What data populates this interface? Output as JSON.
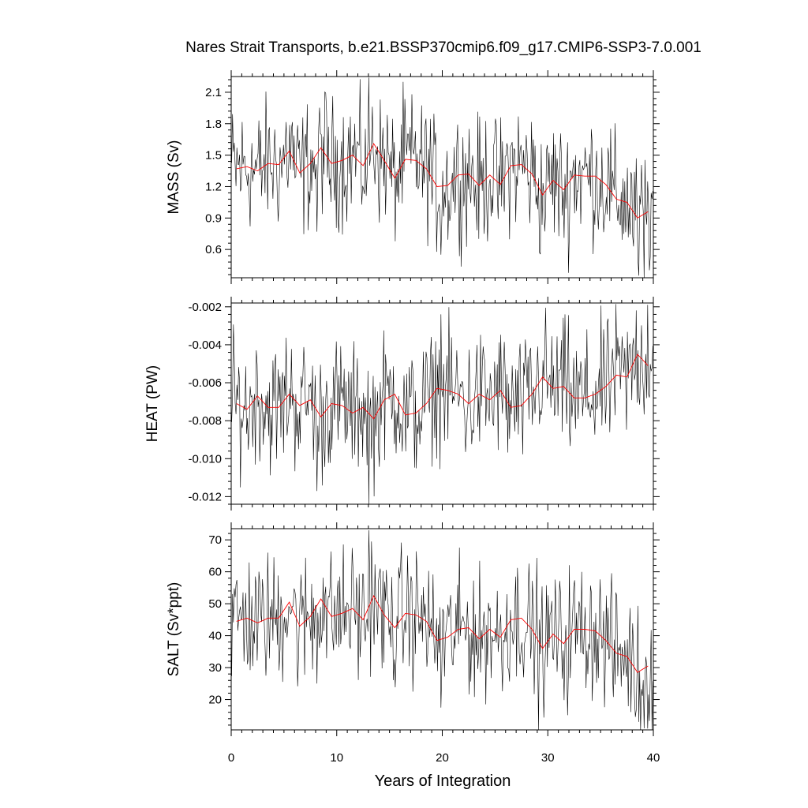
{
  "chart_data": {
    "title": "Nares Strait Transports, b.e21.BSSP370cmip6.f09_g17.CMIP6-SSP3-7.0.001",
    "xlabel": "Years of Integration",
    "xlim": [
      0,
      40
    ],
    "xticks": [
      "0",
      "10",
      "20",
      "30",
      "40"
    ],
    "line_colors": {
      "monthly": "#000000",
      "annual": "#ff0000"
    },
    "panels": [
      {
        "type": "line",
        "ylabel": "MASS (Sv)",
        "ylim": [
          0.33,
          2.25
        ],
        "yticks": [
          "0.6",
          "0.9",
          "1.2",
          "1.5",
          "1.8",
          "2.1"
        ],
        "annual_x": [
          0.5,
          1.5,
          2.5,
          3.5,
          4.5,
          5.5,
          6.5,
          7.5,
          8.5,
          9.5,
          10.5,
          11.5,
          12.5,
          13.5,
          14.5,
          15.5,
          16.5,
          17.5,
          18.5,
          19.5,
          20.5,
          21.5,
          22.5,
          23.5,
          24.5,
          25.5,
          26.5,
          27.5,
          28.5,
          29.5,
          30.5,
          31.5,
          32.5,
          33.5,
          34.5,
          35.5,
          36.5,
          37.5,
          38.5,
          39.5
        ],
        "annual": [
          1.37,
          1.39,
          1.35,
          1.42,
          1.41,
          1.54,
          1.33,
          1.42,
          1.57,
          1.42,
          1.45,
          1.5,
          1.4,
          1.61,
          1.45,
          1.28,
          1.46,
          1.45,
          1.37,
          1.2,
          1.21,
          1.31,
          1.32,
          1.21,
          1.31,
          1.22,
          1.4,
          1.41,
          1.32,
          1.12,
          1.26,
          1.17,
          1.31,
          1.3,
          1.3,
          1.22,
          1.08,
          1.05,
          0.9,
          0.96
        ],
        "spikes": [
          [
            13.05,
            2.24
          ],
          [
            19.85,
            0.55
          ],
          [
            38.6,
            0.35
          ],
          [
            39.15,
            0.32
          ],
          [
            8.1,
            0.77
          ]
        ]
      },
      {
        "type": "line",
        "ylabel": "HEAT (PW)",
        "ylim": [
          -0.0124,
          -0.0018
        ],
        "yticks": [
          "-0.012",
          "-0.010",
          "-0.008",
          "-0.006",
          "-0.004",
          "-0.002"
        ],
        "annual_x": [
          0.5,
          1.5,
          2.5,
          3.5,
          4.5,
          5.5,
          6.5,
          7.5,
          8.5,
          9.5,
          10.5,
          11.5,
          12.5,
          13.5,
          14.5,
          15.5,
          16.5,
          17.5,
          18.5,
          19.5,
          20.5,
          21.5,
          22.5,
          23.5,
          24.5,
          25.5,
          26.5,
          27.5,
          28.5,
          29.5,
          30.5,
          31.5,
          32.5,
          33.5,
          34.5,
          35.5,
          36.5,
          37.5,
          38.5,
          39.5
        ],
        "annual": [
          -0.0071,
          -0.0074,
          -0.0067,
          -0.0073,
          -0.0073,
          -0.0066,
          -0.0072,
          -0.0069,
          -0.0078,
          -0.0071,
          -0.0072,
          -0.0076,
          -0.0073,
          -0.0079,
          -0.0069,
          -0.0066,
          -0.0077,
          -0.0076,
          -0.0071,
          -0.0063,
          -0.0064,
          -0.0066,
          -0.0071,
          -0.0066,
          -0.0069,
          -0.0064,
          -0.0073,
          -0.0072,
          -0.0066,
          -0.0057,
          -0.0063,
          -0.0062,
          -0.0068,
          -0.0068,
          -0.0066,
          -0.0062,
          -0.0056,
          -0.0057,
          -0.0045,
          -0.0051
        ],
        "spikes": [
          [
            13.05,
            -0.0124
          ],
          [
            19.85,
            -0.0024
          ],
          [
            39.5,
            -0.0019
          ],
          [
            8.1,
            -0.0117
          ]
        ]
      },
      {
        "type": "line",
        "ylabel": "SALT (Sv*ppt)",
        "ylim": [
          10.5,
          73.5
        ],
        "yticks": [
          "20",
          "30",
          "40",
          "50",
          "60",
          "70"
        ],
        "annual_x": [
          0.5,
          1.5,
          2.5,
          3.5,
          4.5,
          5.5,
          6.5,
          7.5,
          8.5,
          9.5,
          10.5,
          11.5,
          12.5,
          13.5,
          14.5,
          15.5,
          16.5,
          17.5,
          18.5,
          19.5,
          20.5,
          21.5,
          22.5,
          23.5,
          24.5,
          25.5,
          26.5,
          27.5,
          28.5,
          29.5,
          30.5,
          31.5,
          32.5,
          33.5,
          34.5,
          35.5,
          36.5,
          37.5,
          38.5,
          39.5
        ],
        "annual": [
          44.5,
          45.5,
          44.0,
          45.5,
          45.5,
          50.5,
          43.0,
          46.0,
          51.5,
          46.0,
          47.0,
          48.5,
          45.0,
          52.5,
          46.5,
          42.5,
          47.0,
          46.5,
          44.5,
          38.5,
          39.5,
          42.0,
          42.5,
          39.0,
          42.0,
          39.5,
          45.0,
          45.5,
          42.0,
          36.0,
          40.5,
          37.5,
          42.0,
          42.0,
          41.5,
          38.5,
          34.5,
          33.5,
          28.5,
          30.5
        ],
        "spikes": [
          [
            13.05,
            73.0
          ],
          [
            19.85,
            17.5
          ],
          [
            38.6,
            13.0
          ],
          [
            39.15,
            11.0
          ],
          [
            8.1,
            25.0
          ]
        ]
      }
    ]
  }
}
